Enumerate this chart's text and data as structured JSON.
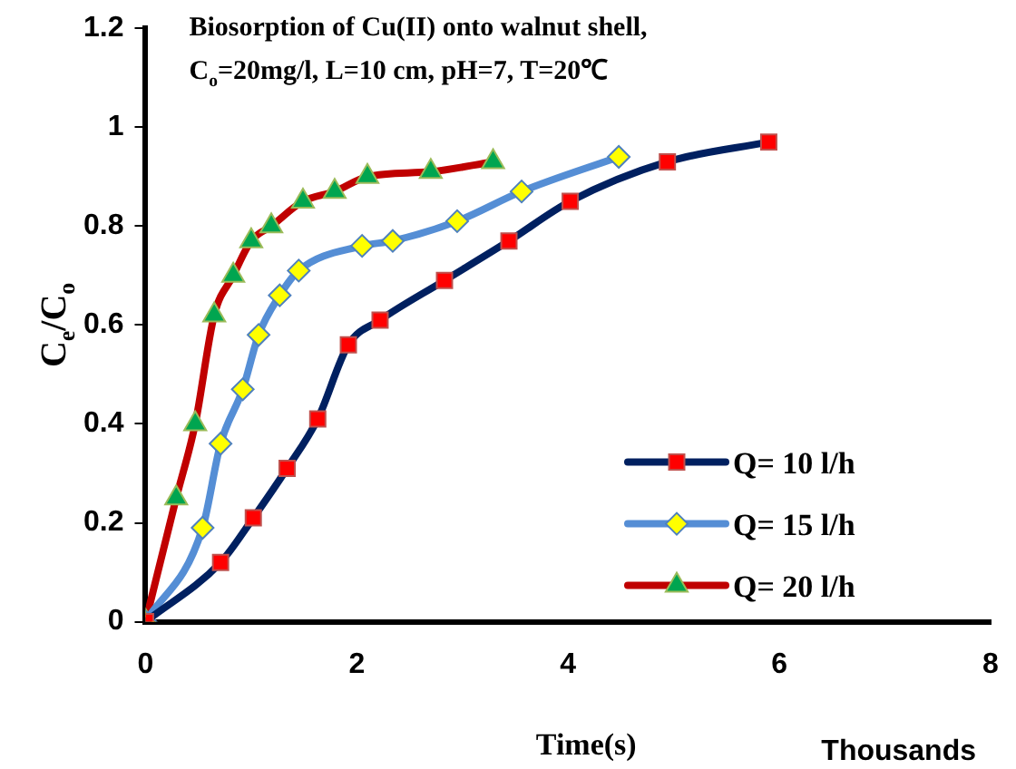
{
  "chart_data": {
    "type": "line",
    "title": "Biosorption of Cu(II) onto walnut shell, C$_{o}$=20mg/l, L=10 cm, pH=7, T=20℃",
    "xlabel": "Time(s)",
    "ylabel": "C$_{e}$/C$_{o}$",
    "annotations": [
      "Thousands"
    ],
    "xlim": [
      0,
      8
    ],
    "xticks": [
      0,
      2,
      4,
      6,
      8
    ],
    "ylim": [
      0,
      1.2
    ],
    "yticks": [
      0,
      0.2,
      0.4,
      0.6,
      0.8,
      1,
      1.2
    ],
    "grid": false,
    "legend": "bottom right",
    "line_style": "solid",
    "series": [
      {
        "name": "Q= 10 l/h",
        "color": "#002060",
        "marker": "square",
        "x": [
          0,
          0.71,
          1.02,
          1.34,
          1.63,
          1.92,
          2.22,
          2.83,
          3.44,
          4.02,
          4.94,
          5.9
        ],
        "values": [
          0,
          0.12,
          0.21,
          0.31,
          0.41,
          0.56,
          0.61,
          0.69,
          0.77,
          0.85,
          0.93,
          0.97
        ]
      },
      {
        "name": "Q= 15 l/h",
        "color": "#558ed5",
        "marker": "diamond",
        "x": [
          0,
          0.54,
          0.71,
          0.92,
          1.07,
          1.27,
          1.45,
          2.05,
          2.34,
          2.95,
          3.56,
          4.48
        ],
        "values": [
          0,
          0.19,
          0.36,
          0.47,
          0.58,
          0.66,
          0.71,
          0.76,
          0.77,
          0.81,
          0.87,
          0.94
        ]
      },
      {
        "name": "Q= 20 l/h",
        "color": "#c00000",
        "marker": "triangle",
        "x": [
          0,
          0.29,
          0.47,
          0.65,
          0.83,
          1,
          1.19,
          1.49,
          1.79,
          2.1,
          2.7,
          3.29
        ],
        "values": [
          0,
          0.25,
          0.4,
          0.62,
          0.7,
          0.77,
          0.8,
          0.85,
          0.87,
          0.9,
          0.91,
          0.93
        ]
      }
    ]
  }
}
